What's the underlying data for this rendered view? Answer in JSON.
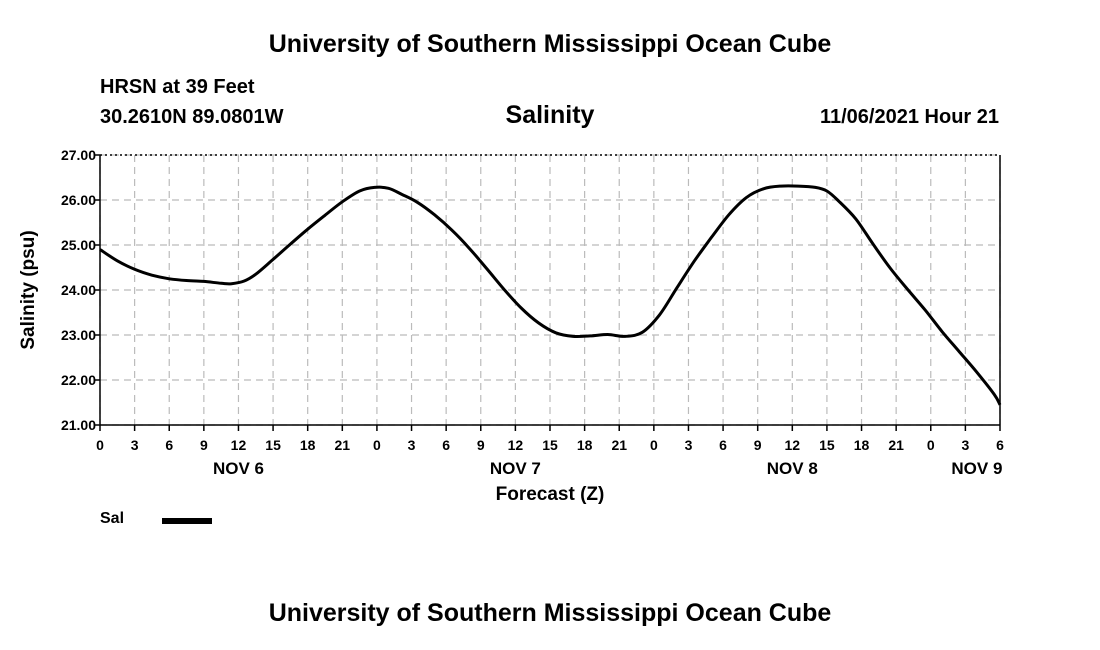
{
  "header": {
    "title": "University of Southern Mississippi Ocean Cube",
    "station": "HRSN at 39 Feet",
    "coords": "30.2610N  89.0801W",
    "timestamp": "11/06/2021 Hour 21"
  },
  "footer": {
    "title": "University of Southern Mississippi Ocean Cube"
  },
  "legend": {
    "label": "Sal"
  },
  "chart_data": {
    "type": "line",
    "title": "Salinity",
    "xlabel": "Forecast (Z)",
    "ylabel": "Salinity (psu)",
    "ylim": [
      21.0,
      27.0
    ],
    "y_ticks": [
      "21.00",
      "22.00",
      "23.00",
      "24.00",
      "25.00",
      "26.00",
      "27.00"
    ],
    "xlim": [
      0,
      78
    ],
    "x_tick_labels": [
      "0",
      "3",
      "6",
      "9",
      "12",
      "15",
      "18",
      "21",
      "0",
      "3",
      "6",
      "9",
      "12",
      "15",
      "18",
      "21",
      "0",
      "3",
      "6",
      "9",
      "12",
      "15",
      "18",
      "21",
      "0",
      "3",
      "6"
    ],
    "day_labels": [
      {
        "hour": 12,
        "label": "NOV 6"
      },
      {
        "hour": 36,
        "label": "NOV 7"
      },
      {
        "hour": 60,
        "label": "NOV 8"
      },
      {
        "hour": 76,
        "label": "NOV 9"
      }
    ],
    "grid": true,
    "series": [
      {
        "name": "Sal",
        "color": "#000000",
        "x": [
          0,
          1.5,
          3,
          4.5,
          6,
          7.5,
          9,
          10.5,
          11.4,
          12.5,
          13.5,
          15,
          16.5,
          18,
          19.5,
          21,
          22.5,
          23.8,
          25,
          26.2,
          27.5,
          29,
          30.5,
          32,
          33.5,
          35,
          36.5,
          38,
          39.5,
          41,
          42.5,
          44,
          45.5,
          47,
          48.5,
          50,
          51.5,
          53,
          54.5,
          56,
          57.5,
          59,
          60.5,
          62,
          63,
          64,
          65.5,
          67,
          68.5,
          70,
          71.5,
          73,
          74.5,
          76,
          77.5,
          78
        ],
        "values": [
          24.9,
          24.65,
          24.46,
          24.33,
          24.25,
          24.21,
          24.19,
          24.15,
          24.14,
          24.2,
          24.35,
          24.68,
          25.02,
          25.35,
          25.66,
          25.96,
          26.2,
          26.28,
          26.26,
          26.12,
          25.95,
          25.67,
          25.33,
          24.93,
          24.48,
          24.02,
          23.6,
          23.27,
          23.05,
          22.97,
          22.98,
          23.01,
          22.97,
          23.06,
          23.45,
          24.05,
          24.64,
          25.17,
          25.67,
          26.05,
          26.25,
          26.31,
          26.31,
          26.28,
          26.2,
          25.98,
          25.58,
          25.02,
          24.48,
          24.01,
          23.56,
          23.07,
          22.62,
          22.17,
          21.68,
          21.45
        ]
      }
    ]
  }
}
